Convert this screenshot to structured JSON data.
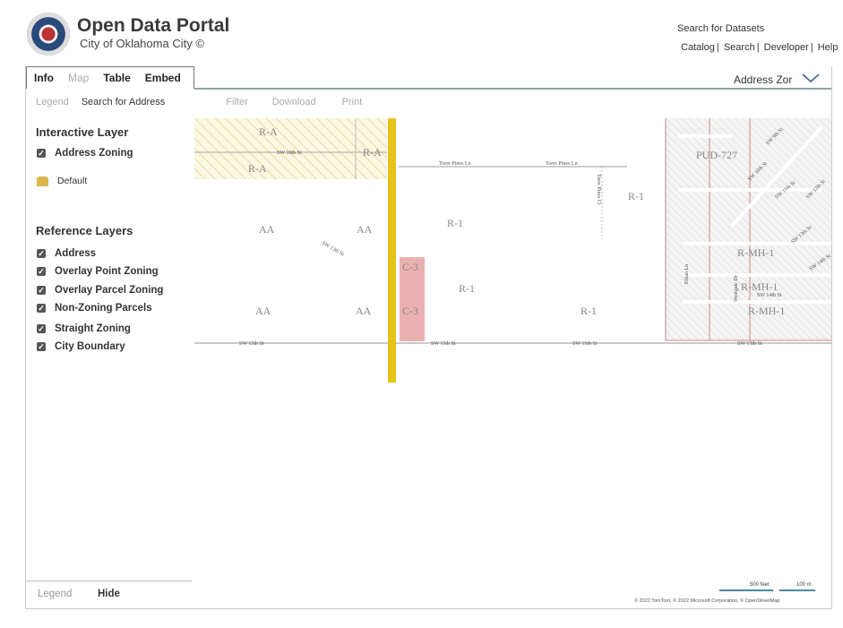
{
  "header": {
    "title": "Open Data Portal",
    "subtitle": "City of Oklahoma City ©",
    "search_datasets": "Search for Datasets",
    "links": [
      "Catalog",
      "Search",
      "Developer",
      "Help"
    ],
    "separator": "|"
  },
  "tabs": [
    {
      "label": "Info",
      "active": true
    },
    {
      "label": "Map",
      "active": false
    },
    {
      "label": "Table",
      "active": true
    },
    {
      "label": "Embed",
      "active": true
    }
  ],
  "layer_select": {
    "value": "Address Zor"
  },
  "subtabs": [
    "Legend",
    "Search for Address",
    "Filter",
    "Download",
    "Print"
  ],
  "sidebar": {
    "interactive_title": "Interactive Layer",
    "interactive_layers": [
      {
        "label": "Address Zoning",
        "checked": true
      }
    ],
    "default_label": "Default",
    "default_color": "#d9b84a",
    "reference_title": "Reference Layers",
    "reference_layers": [
      {
        "label": "Address",
        "checked": true
      },
      {
        "label": "Overlay Point Zoning",
        "checked": true
      },
      {
        "label": "Overlay Parcel Zoning",
        "checked": true
      },
      {
        "label": "Non-Zoning Parcels",
        "checked": true
      },
      {
        "label": "Straight Zoning",
        "checked": true
      },
      {
        "label": "City Boundary",
        "checked": true
      }
    ],
    "legend": "Legend",
    "hide": "Hide"
  },
  "map": {
    "labels": [
      "R-A",
      "R-A",
      "R-A",
      "SW 10th St",
      "AA",
      "AA",
      "SW 13th St",
      "AA",
      "AA",
      "C-3",
      "C-3",
      "R-1",
      "R-1",
      "R-1",
      "R-1",
      "PUD-727",
      "R-MH-1",
      "R-MH-1",
      "R-MH-1",
      "SW 15th St",
      "SW 15th St",
      "SW 15th St",
      "SW 15th St",
      "Torre Pines Ln",
      "Torre Pines Ln",
      "Torre Pines Ct",
      "SW 9th St",
      "SW 10th St",
      "SW 11th St",
      "SW 12th St",
      "SW 13th St",
      "SW 14th St",
      "Ethan Ln",
      "Westgate Dr",
      "SW 14th St"
    ],
    "colors": {
      "road_major": "#e8c21c",
      "commercial": "#eab0b0",
      "ag_hatch": "#e6dc8c",
      "boundary": "#c98a80"
    }
  },
  "scale": {
    "feet": "500 feet",
    "meters": "100 m"
  },
  "attribution": "© 2022 TomTom, © 2022 Microsoft Corporation, © OpenStreetMap"
}
